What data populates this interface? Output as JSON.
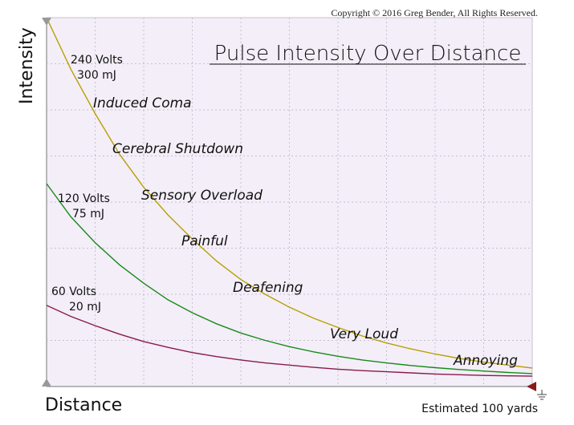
{
  "copyright": "Copyright © 2016 Greg Bender, All Rights Reserved.",
  "chart_data": {
    "type": "line",
    "title": "Pulse Intensity Over Distance",
    "xlabel": "Distance",
    "ylabel": "Intensity",
    "x_note": "Estimated 100 yards",
    "xlim": [
      0,
      1
    ],
    "ylim": [
      0,
      1
    ],
    "grid": true,
    "x": [
      0,
      0.05,
      0.1,
      0.15,
      0.2,
      0.25,
      0.3,
      0.35,
      0.4,
      0.45,
      0.5,
      0.55,
      0.6,
      0.65,
      0.7,
      0.75,
      0.8,
      0.85,
      0.9,
      0.95,
      1.0
    ],
    "series": [
      {
        "name": "240 Volts",
        "sublabel": "300 mJ",
        "color": "#b8a000",
        "values": [
          1.0,
          0.86,
          0.74,
          0.63,
          0.54,
          0.465,
          0.4,
          0.34,
          0.29,
          0.25,
          0.215,
          0.185,
          0.16,
          0.137,
          0.118,
          0.102,
          0.088,
          0.076,
          0.066,
          0.058,
          0.05
        ]
      },
      {
        "name": "120 Volts",
        "sublabel": "75 mJ",
        "color": "#1a8a1a",
        "values": [
          0.55,
          0.46,
          0.39,
          0.33,
          0.28,
          0.235,
          0.2,
          0.17,
          0.145,
          0.125,
          0.108,
          0.094,
          0.082,
          0.072,
          0.064,
          0.057,
          0.051,
          0.046,
          0.042,
          0.038,
          0.035
        ]
      },
      {
        "name": "60 Volts",
        "sublabel": "20 mJ",
        "color": "#8a1a4a",
        "values": [
          0.22,
          0.19,
          0.165,
          0.142,
          0.122,
          0.106,
          0.092,
          0.081,
          0.072,
          0.064,
          0.058,
          0.052,
          0.047,
          0.043,
          0.04,
          0.037,
          0.034,
          0.032,
          0.03,
          0.029,
          0.028
        ]
      }
    ],
    "levels": [
      "Induced Coma",
      "Cerebral Shutdown",
      "Sensory Overload",
      "Painful",
      "Deafening",
      "Very Loud",
      "Annoying"
    ]
  }
}
